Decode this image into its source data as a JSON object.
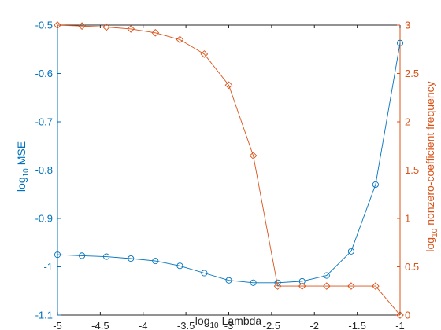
{
  "chart_data": {
    "type": "line",
    "xlabel": "log",
    "xlabel_sub": "10",
    "xlabel_tail": "Lambda",
    "ylabel_left": "log",
    "ylabel_left_sub": "10",
    "ylabel_left_tail": "MSE",
    "ylabel_right": "log",
    "ylabel_right_sub": "10",
    "ylabel_right_tail": "nonzero-coefficient frequency",
    "xlim": [
      -5,
      -1
    ],
    "ylim_left": [
      -1.1,
      -0.5
    ],
    "ylim_right": [
      0,
      3
    ],
    "xticks": [
      "-5",
      "-4.5",
      "-4",
      "-3.5",
      "-3",
      "-2.5",
      "-2",
      "-1.5",
      "-1"
    ],
    "yticks_left": [
      "-1.1",
      "-1",
      "-0.9",
      "-0.8",
      "-0.7",
      "-0.6",
      "-0.5"
    ],
    "yticks_right": [
      "0",
      "0.5",
      "1",
      "1.5",
      "2",
      "2.5",
      "3"
    ],
    "x": [
      -5,
      -4.714,
      -4.429,
      -4.143,
      -3.857,
      -3.571,
      -3.286,
      -3,
      -2.714,
      -2.429,
      -2.143,
      -1.857,
      -1.571,
      -1.286,
      -1
    ],
    "series": [
      {
        "axis": "left",
        "color": "#0072BD",
        "marker": "circle",
        "values": [
          -0.975,
          -0.977,
          -0.979,
          -0.983,
          -0.988,
          -0.998,
          -1.013,
          -1.028,
          -1.033,
          -1.033,
          -1.03,
          -1.018,
          -0.968,
          -0.83,
          -0.537
        ]
      },
      {
        "axis": "right",
        "color": "#D95319",
        "marker": "diamond",
        "values": [
          3.0,
          2.99,
          2.98,
          2.96,
          2.92,
          2.85,
          2.7,
          2.38,
          1.65,
          0.3,
          0.3,
          0.3,
          0.3,
          0.3,
          0.0
        ]
      }
    ],
    "grid": false,
    "legend": "none"
  }
}
